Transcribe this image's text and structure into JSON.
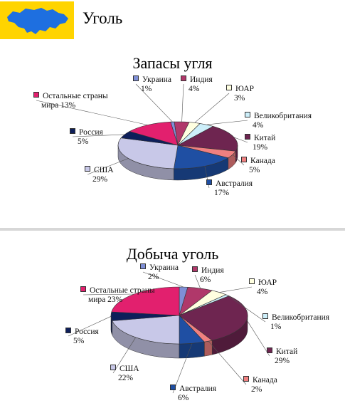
{
  "page": {
    "title": "Уголь"
  },
  "colors": {
    "header_bg": "#FFD400",
    "map": "#1E6FE0",
    "Украина": "#7F8FD6",
    "Индия": "#B0386A",
    "ЮАР": "#FFFFE0",
    "Великобритания": "#CDEFFA",
    "Китай": "#6E2550",
    "Канада": "#F08080",
    "Австралия": "#1F4FA3",
    "США": "#C8C8E8",
    "Россия": "#0E1F5A",
    "Остальные страны мира": "#E2206E"
  },
  "chart_data": [
    {
      "type": "pie",
      "title": "Запасы угля",
      "categories": [
        "Украина",
        "Индия",
        "ЮАР",
        "Великобритания",
        "Китай",
        "Канада",
        "Австралия",
        "США",
        "Россия",
        "Остальные страны мира"
      ],
      "values": [
        1,
        4,
        3,
        4,
        19,
        5,
        17,
        29,
        5,
        13
      ],
      "labels": [
        [
          "Украина",
          "1%"
        ],
        [
          "Индия",
          "4%"
        ],
        [
          "ЮАР",
          "3%"
        ],
        [
          "Великобритания",
          "4%"
        ],
        [
          "Китай",
          "19%"
        ],
        [
          "Канада",
          "5%"
        ],
        [
          "Австралия",
          "17%"
        ],
        [
          "США",
          "29%"
        ],
        [
          "Россия",
          "5%"
        ],
        [
          "Остальные страны",
          "мира 13%"
        ]
      ],
      "legend": "labels around pie"
    },
    {
      "type": "pie",
      "title": "Добыча уголь",
      "categories": [
        "Украина",
        "Индия",
        "ЮАР",
        "Великобритания",
        "Китай",
        "Канада",
        "Австралия",
        "США",
        "Россия",
        "Остальные страны мира"
      ],
      "values": [
        2,
        6,
        4,
        1,
        29,
        2,
        6,
        22,
        5,
        23
      ],
      "labels": [
        [
          "Украина",
          "2%"
        ],
        [
          "Индия",
          "6%"
        ],
        [
          "ЮАР",
          "4%"
        ],
        [
          "Великобритания",
          "1%"
        ],
        [
          "Китай",
          "29%"
        ],
        [
          "Канада",
          "2%"
        ],
        [
          "Австралия",
          "6%"
        ],
        [
          "США",
          "22%"
        ],
        [
          "Россия",
          "5%"
        ],
        [
          "Остальные страны",
          "мира 23%"
        ]
      ],
      "legend": "labels around pie"
    }
  ]
}
